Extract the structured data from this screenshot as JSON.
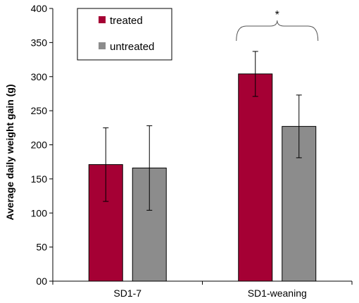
{
  "chart_data": {
    "type": "bar",
    "title": "",
    "xlabel": "",
    "ylabel": "Average daily weight gain (g)",
    "ylim": [
      0,
      400
    ],
    "yticks": [
      0,
      50,
      100,
      150,
      200,
      250,
      300,
      350,
      400
    ],
    "ytick_labels": [
      "00",
      "50",
      "100",
      "150",
      "200",
      "250",
      "300",
      "350",
      "400"
    ],
    "categories": [
      "SD1-7",
      "SD1-weaning"
    ],
    "series": [
      {
        "name": "treated",
        "color": "#A50034",
        "values": [
          171,
          304
        ],
        "error": [
          54,
          33
        ]
      },
      {
        "name": "untreated",
        "color": "#8C8C8C",
        "values": [
          166,
          227
        ],
        "error": [
          62,
          46
        ]
      }
    ],
    "legend_position": "top-left",
    "grid": false,
    "annotations": [
      {
        "text": "*",
        "type": "significance-bracket",
        "category": "SD1-weaning"
      }
    ]
  }
}
